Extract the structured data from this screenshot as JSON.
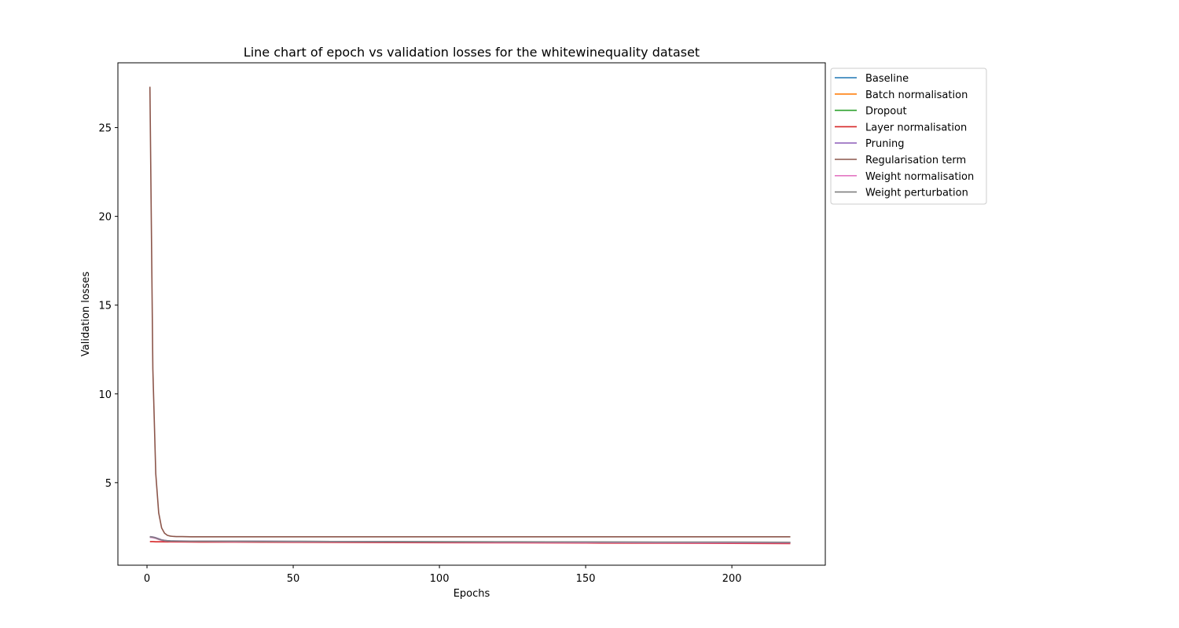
{
  "chart_data": {
    "type": "line",
    "title": "Line chart of epoch vs validation losses for the whitewinequality dataset",
    "xlabel": "Epochs",
    "ylabel": "Validation losses",
    "xlim": [
      -9.95,
      231.95
    ],
    "ylim": [
      0.35,
      28.65
    ],
    "xticks": [
      0,
      50,
      100,
      150,
      200
    ],
    "yticks": [
      5,
      10,
      15,
      20,
      25
    ],
    "grid": false,
    "legend_position": "outside-upper-right",
    "series": [
      {
        "name": "Baseline",
        "color": "#1f77b4",
        "x": [
          1,
          2,
          3,
          4,
          5,
          6,
          7,
          8,
          10,
          15,
          20,
          30,
          40,
          50,
          75,
          100,
          125,
          150,
          175,
          200,
          220
        ],
        "y": [
          1.93,
          1.91,
          1.87,
          1.81,
          1.76,
          1.73,
          1.72,
          1.71,
          1.71,
          1.7,
          1.7,
          1.69,
          1.68,
          1.68,
          1.67,
          1.66,
          1.65,
          1.64,
          1.63,
          1.62,
          1.62
        ]
      },
      {
        "name": "Batch normalisation",
        "color": "#ff7f0e",
        "x": [
          1,
          2,
          3,
          4,
          5,
          6,
          7,
          8,
          10,
          15,
          20,
          30,
          40,
          50,
          75,
          100,
          125,
          150,
          175,
          200,
          220
        ],
        "y": [
          1.95,
          1.93,
          1.89,
          1.83,
          1.77,
          1.74,
          1.72,
          1.71,
          1.7,
          1.7,
          1.69,
          1.69,
          1.68,
          1.67,
          1.66,
          1.65,
          1.64,
          1.63,
          1.63,
          1.62,
          1.62
        ]
      },
      {
        "name": "Dropout",
        "color": "#2ca02c",
        "x": [
          1,
          2,
          3,
          4,
          5,
          6,
          7,
          8,
          10,
          15,
          20,
          30,
          40,
          50,
          75,
          100,
          125,
          150,
          175,
          200,
          220
        ],
        "y": [
          1.94,
          1.92,
          1.88,
          1.82,
          1.77,
          1.74,
          1.73,
          1.72,
          1.71,
          1.71,
          1.7,
          1.7,
          1.69,
          1.69,
          1.68,
          1.67,
          1.66,
          1.65,
          1.64,
          1.63,
          1.63
        ]
      },
      {
        "name": "Layer normalisation",
        "color": "#d62728",
        "x": [
          1,
          2,
          3,
          5,
          10,
          20,
          30,
          50,
          75,
          100,
          125,
          150,
          175,
          200,
          220
        ],
        "y": [
          1.68,
          1.68,
          1.67,
          1.67,
          1.66,
          1.65,
          1.65,
          1.64,
          1.63,
          1.62,
          1.61,
          1.6,
          1.59,
          1.58,
          1.57
        ]
      },
      {
        "name": "Pruning",
        "color": "#9467bd",
        "x": [
          1,
          2,
          3,
          4,
          5,
          6,
          7,
          8,
          10,
          15,
          20,
          30,
          40,
          50,
          75,
          100,
          125,
          150,
          175,
          200,
          220
        ],
        "y": [
          1.96,
          1.94,
          1.9,
          1.84,
          1.78,
          1.75,
          1.73,
          1.72,
          1.72,
          1.71,
          1.71,
          1.7,
          1.7,
          1.69,
          1.68,
          1.67,
          1.66,
          1.65,
          1.64,
          1.63,
          1.62
        ]
      },
      {
        "name": "Regularisation term",
        "color": "#8c564b",
        "x": [
          1,
          2,
          3,
          4,
          5,
          6,
          7,
          8,
          9,
          10,
          12,
          15,
          20,
          50,
          100,
          150,
          200,
          220
        ],
        "y": [
          27.3,
          11.4,
          5.5,
          3.3,
          2.45,
          2.15,
          2.03,
          1.99,
          1.97,
          1.96,
          1.96,
          1.95,
          1.95,
          1.95,
          1.95,
          1.95,
          1.95,
          1.95
        ]
      },
      {
        "name": "Weight normalisation",
        "color": "#e377c2",
        "x": [
          1,
          2,
          3,
          4,
          5,
          6,
          7,
          8,
          10,
          15,
          20,
          30,
          40,
          50,
          75,
          100,
          125,
          150,
          175,
          200,
          220
        ],
        "y": [
          1.92,
          1.9,
          1.86,
          1.8,
          1.75,
          1.72,
          1.71,
          1.7,
          1.7,
          1.69,
          1.69,
          1.68,
          1.68,
          1.67,
          1.66,
          1.65,
          1.64,
          1.63,
          1.62,
          1.61,
          1.61
        ]
      },
      {
        "name": "Weight perturbation",
        "color": "#7f7f7f",
        "x": [
          1,
          2,
          3,
          4,
          5,
          6,
          7,
          8,
          10,
          15,
          20,
          30,
          40,
          50,
          75,
          100,
          125,
          150,
          175,
          200,
          220
        ],
        "y": [
          1.95,
          1.93,
          1.88,
          1.82,
          1.77,
          1.74,
          1.72,
          1.71,
          1.71,
          1.7,
          1.7,
          1.7,
          1.69,
          1.69,
          1.68,
          1.67,
          1.67,
          1.66,
          1.65,
          1.65,
          1.64
        ]
      }
    ]
  }
}
